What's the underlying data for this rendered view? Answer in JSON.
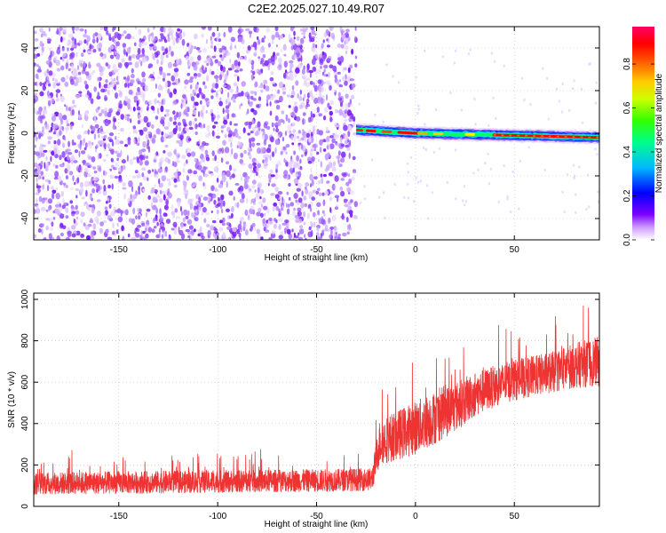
{
  "title": "C2E2.2025.027.10.49.R07",
  "chart_data": [
    {
      "type": "heatmap",
      "name": "spectrogram",
      "xlabel": "Height of straight line (km)",
      "ylabel": "Frequency (Hz)",
      "xlim": [
        -193,
        93
      ],
      "ylim": [
        -50,
        50
      ],
      "xticks": [
        -150,
        -100,
        -50,
        0,
        50
      ],
      "yticks": [
        -40,
        -20,
        0,
        20,
        40
      ],
      "colorbar": {
        "label": "Normalized spectral amplitude",
        "range": [
          0,
          0.97
        ],
        "ticks": [
          0.0,
          0.2,
          0.4,
          0.6,
          0.8
        ],
        "tick_labels": [
          "0.0",
          "0.2",
          "0.4",
          "0.6",
          "0.8"
        ],
        "colormap": [
          "#ffffff",
          "#6a00ff",
          "#0000ff",
          "#00ccff",
          "#00ff66",
          "#ccff00",
          "#ffaa00",
          "#ff0000",
          "#ff0066"
        ]
      },
      "regions": [
        {
          "description": "noise speckle",
          "x_range": [
            -193,
            -30
          ],
          "y_range": [
            -50,
            50
          ],
          "amplitude_range": [
            0.0,
            0.2
          ]
        },
        {
          "description": "narrow signal band",
          "x_range": [
            -30,
            93
          ],
          "center_frequency": [
            [
              -30,
              1.5
            ],
            [
              0,
              0
            ],
            [
              50,
              -1.0
            ],
            [
              93,
              -2.0
            ]
          ],
          "bandwidth_hz": 4,
          "peak_amplitude": 0.95
        }
      ],
      "grid": true
    },
    {
      "type": "line",
      "name": "snr",
      "xlabel": "Height of straight line (km)",
      "ylabel": "SNR (10 * v/v)",
      "xlim": [
        -193,
        93
      ],
      "ylim": [
        0,
        1030
      ],
      "xticks": [
        -150,
        -100,
        -50,
        0,
        50
      ],
      "yticks": [
        0,
        200,
        400,
        600,
        800,
        1000
      ],
      "grid": true,
      "color": "#ee3333",
      "series": [
        {
          "x": [
            -193,
            -150,
            -100,
            -50,
            -22,
            -18,
            -10,
            0,
            10,
            20,
            30,
            40,
            50,
            60,
            70,
            80,
            93
          ],
          "y": [
            110,
            115,
            120,
            125,
            130,
            310,
            340,
            380,
            430,
            480,
            540,
            580,
            610,
            630,
            650,
            680,
            700
          ],
          "spread": [
            55,
            55,
            55,
            55,
            55,
            110,
            120,
            130,
            130,
            120,
            110,
            100,
            100,
            100,
            100,
            110,
            120
          ]
        }
      ]
    }
  ]
}
